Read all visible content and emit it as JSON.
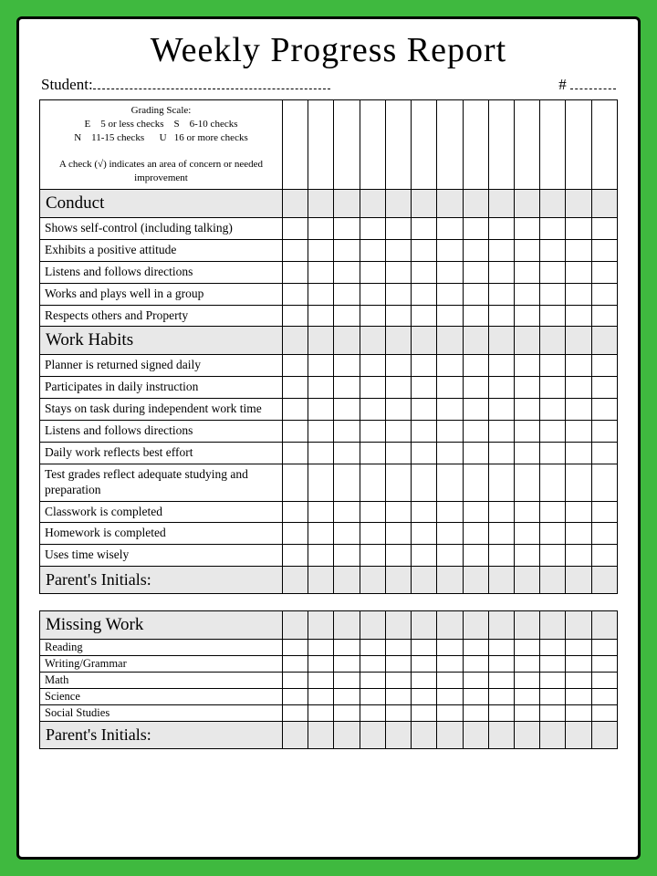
{
  "title": "Weekly Progress Report",
  "student_label": "Student:",
  "number_label": "#",
  "columns": 13,
  "grading_scale": {
    "heading": "Grading Scale:",
    "lines": [
      "E    5 or less checks    S    6-10 checks",
      "N    11-15 checks      U   16 or more checks"
    ],
    "note": "A check (√) indicates an area of concern or needed improvement"
  },
  "sections": [
    {
      "header": "Conduct",
      "items": [
        "Shows self-control (including talking)",
        "Exhibits a positive attitude",
        "Listens and follows directions",
        "Works and plays well in a group",
        "Respects others and Property"
      ]
    },
    {
      "header": "Work Habits",
      "items": [
        "Planner is returned signed daily",
        "Participates in daily instruction",
        "Stays on task during independent work time",
        "Listens and follows directions",
        "Daily work reflects best effort",
        "Test grades reflect adequate studying and preparation",
        "Classwork is completed",
        "Homework is completed",
        "Uses time wisely"
      ]
    }
  ],
  "parent_initials": "Parent's Initials:",
  "missing_work": {
    "header": "Missing Work",
    "items": [
      "Reading",
      "Writing/Grammar",
      "Math",
      "Science",
      "Social Studies"
    ]
  },
  "colors": {
    "frame": "#3fb93f",
    "header_bg": "#e8e8e8",
    "border": "#000000"
  }
}
